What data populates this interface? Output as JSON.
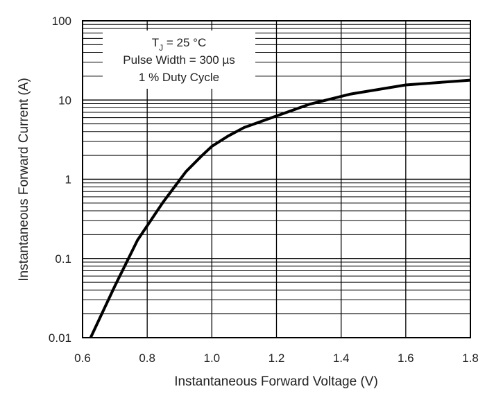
{
  "chart_data": {
    "type": "line",
    "xlabel": "Instantaneous Forward Voltage (V)",
    "ylabel": "Instantaneous Forward Current (A)",
    "x_scale": "linear",
    "y_scale": "log",
    "xlim": [
      0.6,
      1.8
    ],
    "ylim": [
      0.01,
      100
    ],
    "x_ticks": [
      "0.6",
      "0.8",
      "1.0",
      "1.2",
      "1.4",
      "1.6",
      "1.8"
    ],
    "y_ticks": [
      "0.01",
      "0.1",
      "1",
      "10",
      "100"
    ],
    "grid": true,
    "annotation": {
      "tj_symbol": "T",
      "tj_subscript": "J",
      "tj_value": " = 25 °C",
      "line2": "Pulse Width = 300 µs",
      "line3": "1 % Duty Cycle"
    },
    "series": [
      {
        "color": "#000000",
        "x": [
          0.625,
          0.7,
          0.77,
          0.85,
          0.92,
          0.97,
          1.0,
          1.05,
          1.1,
          1.2,
          1.3,
          1.43,
          1.6,
          1.8
        ],
        "y": [
          0.01,
          0.045,
          0.17,
          0.52,
          1.25,
          2.0,
          2.6,
          3.5,
          4.5,
          6.3,
          8.8,
          11.9,
          15.5,
          17.8
        ]
      }
    ]
  }
}
